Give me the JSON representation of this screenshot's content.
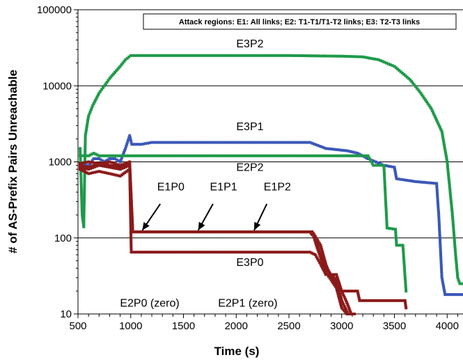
{
  "chart_data": {
    "type": "line",
    "title": "",
    "xlabel": "Time (s)",
    "ylabel": "# of AS-Prefix Pairs  Unreachable",
    "x_scale": "linear",
    "y_scale": "log",
    "xlim": [
      500,
      4150
    ],
    "ylim": [
      10,
      100000
    ],
    "x_ticks": [
      500,
      1000,
      1500,
      2000,
      2500,
      3000,
      3500,
      4000
    ],
    "y_ticks": [
      10,
      100,
      1000,
      10000,
      100000
    ],
    "y_tick_labels": [
      "10",
      "100",
      "1000",
      "10000",
      "100000"
    ],
    "grid": "horizontal",
    "legend_box": "Attack regions: E1: All links; E2: T1-T1/T1-T2 links; E3: T2-T3 links",
    "colors": {
      "green": "#1f9a4a",
      "blue": "#3b58b8",
      "darkred": "#8b1a1a"
    },
    "series": [
      {
        "name": "E3P2",
        "color": "green",
        "points": [
          [
            520,
            1500
          ],
          [
            540,
            200
          ],
          [
            555,
            140
          ],
          [
            570,
            2200
          ],
          [
            600,
            4000
          ],
          [
            640,
            5500
          ],
          [
            700,
            8000
          ],
          [
            750,
            10000
          ],
          [
            800,
            12500
          ],
          [
            850,
            15000
          ],
          [
            900,
            18000
          ],
          [
            950,
            22000
          ],
          [
            1000,
            25000
          ],
          [
            1500,
            25000
          ],
          [
            2000,
            25000
          ],
          [
            2500,
            25000
          ],
          [
            3000,
            24500
          ],
          [
            3200,
            24000
          ],
          [
            3350,
            22000
          ],
          [
            3500,
            18000
          ],
          [
            3650,
            12000
          ],
          [
            3750,
            8000
          ],
          [
            3850,
            5000
          ],
          [
            3950,
            2500
          ],
          [
            4000,
            1000
          ],
          [
            4050,
            200
          ],
          [
            4080,
            60
          ],
          [
            4100,
            30
          ],
          [
            4120,
            25
          ],
          [
            4150,
            25
          ]
        ]
      },
      {
        "name": "E3P1",
        "color": "blue",
        "points": [
          [
            520,
            900
          ],
          [
            600,
            900
          ],
          [
            650,
            1100
          ],
          [
            700,
            1100
          ],
          [
            750,
            1000
          ],
          [
            800,
            1100
          ],
          [
            850,
            1100
          ],
          [
            900,
            1000
          ],
          [
            950,
            1500
          ],
          [
            990,
            2200
          ],
          [
            1010,
            1700
          ],
          [
            1100,
            1700
          ],
          [
            1200,
            1800
          ],
          [
            1500,
            1800
          ],
          [
            2000,
            1800
          ],
          [
            2500,
            1800
          ],
          [
            2700,
            1800
          ],
          [
            2850,
            1500
          ],
          [
            3050,
            1400
          ],
          [
            3150,
            1300
          ],
          [
            3250,
            1100
          ],
          [
            3400,
            900
          ],
          [
            3500,
            850
          ],
          [
            3520,
            600
          ],
          [
            3700,
            550
          ],
          [
            3900,
            520
          ],
          [
            3920,
            200
          ],
          [
            3950,
            30
          ],
          [
            3980,
            18
          ],
          [
            4150,
            18
          ]
        ]
      },
      {
        "name": "E2P2",
        "color": "green",
        "points": [
          [
            520,
            1200
          ],
          [
            600,
            1200
          ],
          [
            650,
            1300
          ],
          [
            700,
            1200
          ],
          [
            800,
            1200
          ],
          [
            900,
            1200
          ],
          [
            1000,
            1200
          ],
          [
            1500,
            1200
          ],
          [
            2000,
            1200
          ],
          [
            2500,
            1200
          ],
          [
            3000,
            1200
          ],
          [
            3250,
            1200
          ],
          [
            3300,
            900
          ],
          [
            3400,
            900
          ],
          [
            3430,
            135
          ],
          [
            3510,
            130
          ],
          [
            3520,
            80
          ],
          [
            3580,
            80
          ],
          [
            3610,
            20
          ]
        ]
      },
      {
        "name": "E1P0",
        "color": "darkred",
        "points": [
          [
            520,
            950
          ],
          [
            600,
            1000
          ],
          [
            700,
            950
          ],
          [
            800,
            1000
          ],
          [
            900,
            900
          ],
          [
            990,
            1000
          ],
          [
            1020,
            120
          ],
          [
            1500,
            120
          ],
          [
            2000,
            120
          ],
          [
            2500,
            120
          ],
          [
            2700,
            120
          ],
          [
            2720,
            110
          ],
          [
            2750,
            100
          ],
          [
            2800,
            60
          ],
          [
            2850,
            40
          ],
          [
            2900,
            33
          ],
          [
            2950,
            28
          ],
          [
            3000,
            15
          ],
          [
            3060,
            10
          ],
          [
            3120,
            10
          ]
        ]
      },
      {
        "name": "E1P1",
        "color": "darkred",
        "points": [
          [
            520,
            900
          ],
          [
            600,
            850
          ],
          [
            700,
            950
          ],
          [
            800,
            900
          ],
          [
            900,
            850
          ],
          [
            990,
            950
          ],
          [
            1010,
            120
          ],
          [
            1500,
            120
          ],
          [
            2000,
            120
          ],
          [
            2500,
            120
          ],
          [
            2720,
            120
          ],
          [
            2740,
            100
          ],
          [
            2760,
            80
          ],
          [
            2800,
            55
          ],
          [
            2850,
            35
          ],
          [
            2900,
            28
          ],
          [
            2950,
            22
          ],
          [
            3000,
            12
          ],
          [
            3050,
            10
          ],
          [
            3100,
            10
          ]
        ]
      },
      {
        "name": "E1P2",
        "color": "darkred",
        "points": [
          [
            520,
            850
          ],
          [
            600,
            800
          ],
          [
            700,
            900
          ],
          [
            800,
            850
          ],
          [
            900,
            800
          ],
          [
            990,
            900
          ],
          [
            1010,
            120
          ],
          [
            1500,
            120
          ],
          [
            2000,
            120
          ],
          [
            2500,
            120
          ],
          [
            2720,
            120
          ],
          [
            2740,
            110
          ],
          [
            2800,
            80
          ],
          [
            2850,
            45
          ],
          [
            2900,
            30
          ],
          [
            2950,
            25
          ],
          [
            3000,
            20
          ],
          [
            3050,
            14
          ],
          [
            3090,
            10
          ]
        ]
      },
      {
        "name": "E3P0",
        "color": "darkred",
        "points": [
          [
            520,
            800
          ],
          [
            600,
            700
          ],
          [
            700,
            750
          ],
          [
            800,
            700
          ],
          [
            900,
            650
          ],
          [
            990,
            800
          ],
          [
            1005,
            65
          ],
          [
            1500,
            65
          ],
          [
            2000,
            65
          ],
          [
            2500,
            65
          ],
          [
            2700,
            65
          ],
          [
            2750,
            60
          ],
          [
            2800,
            45
          ],
          [
            2850,
            33
          ],
          [
            2950,
            33
          ],
          [
            3000,
            20
          ],
          [
            3150,
            20
          ],
          [
            3170,
            15
          ],
          [
            3600,
            15
          ],
          [
            3610,
            12
          ]
        ]
      }
    ],
    "annotations": [
      {
        "text": "E3P2",
        "x": 2130,
        "y": 32000
      },
      {
        "text": "E3P1",
        "x": 2130,
        "y": 2600
      },
      {
        "text": "E2P2",
        "x": 2130,
        "y": 760
      },
      {
        "text": "E1P0",
        "x": 1380,
        "y": 420
      },
      {
        "text": "E1P1",
        "x": 1880,
        "y": 420
      },
      {
        "text": "E1P2",
        "x": 2390,
        "y": 420
      },
      {
        "text": "E3P0",
        "x": 2130,
        "y": 43
      },
      {
        "text": "E2P0 (zero)",
        "x": 1180,
        "y": 12.5
      },
      {
        "text": "E2P1 (zero)",
        "x": 2110,
        "y": 12.5
      }
    ],
    "arrows": [
      {
        "from_x": 1280,
        "from_y": 280,
        "to_x": 1110,
        "to_y": 126
      },
      {
        "from_x": 1780,
        "from_y": 280,
        "to_x": 1640,
        "to_y": 126
      },
      {
        "from_x": 2290,
        "from_y": 280,
        "to_x": 2170,
        "to_y": 126
      }
    ]
  }
}
